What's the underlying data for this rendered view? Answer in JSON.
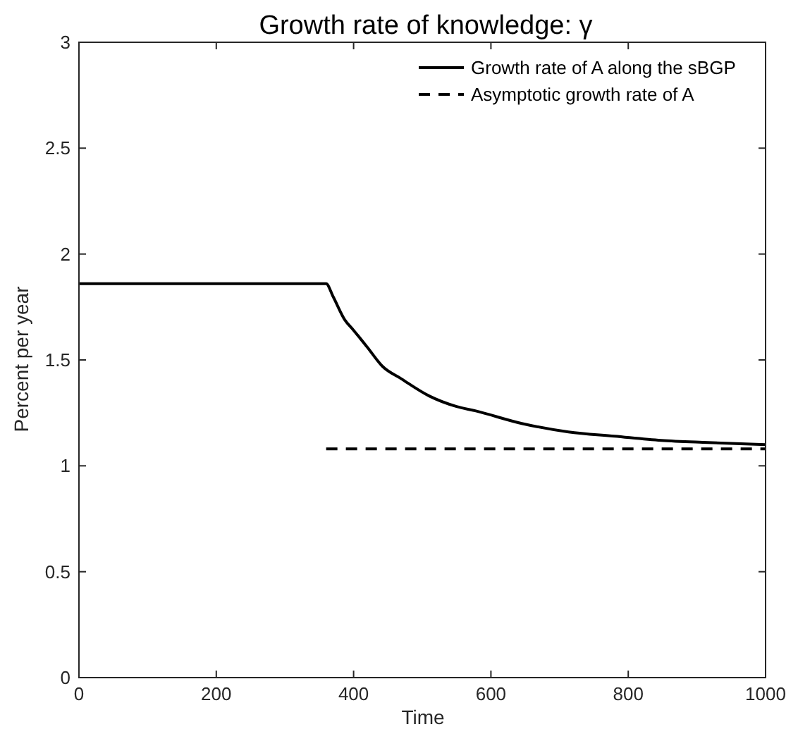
{
  "chart_data": {
    "type": "line",
    "title": "Growth rate of knowledge: γ",
    "xlabel": "Time",
    "ylabel": "Percent per year",
    "xlim": [
      0,
      1000
    ],
    "xticks": [
      0,
      200,
      400,
      600,
      800,
      1000
    ],
    "ylim": [
      0,
      3
    ],
    "yticks": [
      0,
      0.5,
      1,
      1.5,
      2,
      2.5,
      3
    ],
    "grid": false,
    "legend": "top right",
    "series": [
      {
        "name": "Growth rate of A along the sBGP",
        "color": "#000000",
        "line_style": "solid",
        "x": [
          0,
          360,
          370,
          387,
          400,
          420,
          442,
          470,
          510,
          550,
          577,
          645,
          713,
          780,
          848,
          916,
          1000
        ],
        "values": [
          1.86,
          1.86,
          1.8,
          1.69,
          1.64,
          1.56,
          1.47,
          1.41,
          1.33,
          1.28,
          1.26,
          1.2,
          1.16,
          1.14,
          1.12,
          1.11,
          1.1
        ]
      },
      {
        "name": "Asymptotic growth rate of A",
        "color": "#000000",
        "line_style": "dashed",
        "x": [
          360,
          1000
        ],
        "values": [
          1.08,
          1.08
        ]
      }
    ]
  }
}
